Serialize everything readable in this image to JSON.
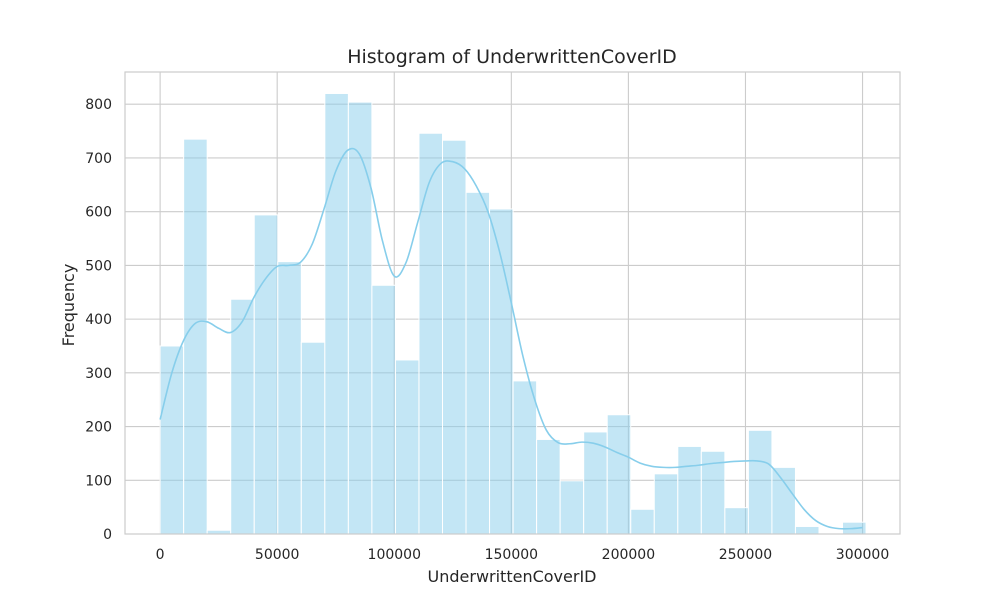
{
  "chart_data": {
    "type": "bar",
    "title": "Histogram of UnderwrittenCoverID",
    "xlabel": "UnderwrittenCoverID",
    "ylabel": "Frequency",
    "xlim": [
      -15000,
      316000
    ],
    "ylim": [
      0,
      860
    ],
    "grid": true,
    "xticks": [
      0,
      50000,
      100000,
      150000,
      200000,
      250000,
      300000
    ],
    "yticks": [
      0,
      100,
      200,
      300,
      400,
      500,
      600,
      700,
      800
    ],
    "bin_start": 0,
    "bin_width": 10050,
    "values": [
      350,
      735,
      7,
      437,
      594,
      507,
      357,
      820,
      804,
      463,
      324,
      746,
      733,
      636,
      605,
      285,
      176,
      99,
      190,
      222,
      46,
      112,
      163,
      154,
      49,
      193,
      124,
      14,
      0,
      22
    ],
    "bar_color": "#87ceeb",
    "kde": {
      "color": "#87ceeb",
      "x": [
        0,
        5000,
        10000,
        15000,
        20000,
        25000,
        30000,
        35000,
        40000,
        45000,
        50000,
        55000,
        60000,
        65000,
        70000,
        75000,
        80000,
        85000,
        90000,
        95000,
        100000,
        105000,
        110000,
        115000,
        120000,
        125000,
        130000,
        135000,
        140000,
        145000,
        150000,
        155000,
        160000,
        165000,
        170000,
        175000,
        180000,
        185000,
        190000,
        195000,
        200000,
        205000,
        210000,
        215000,
        220000,
        225000,
        230000,
        235000,
        240000,
        245000,
        250000,
        255000,
        260000,
        265000,
        270000,
        275000,
        280000,
        285000,
        290000,
        295000,
        300000
      ],
      "y": [
        213,
        300,
        360,
        392,
        395,
        383,
        375,
        395,
        440,
        475,
        498,
        500,
        506,
        540,
        605,
        675,
        714,
        708,
        645,
        545,
        480,
        505,
        580,
        655,
        690,
        693,
        680,
        648,
        600,
        525,
        430,
        330,
        250,
        193,
        170,
        168,
        171,
        169,
        162,
        152,
        143,
        132,
        126,
        124,
        124,
        126,
        128,
        131,
        133,
        135,
        136,
        136,
        130,
        105,
        75,
        46,
        25,
        14,
        10,
        10,
        12
      ]
    }
  }
}
